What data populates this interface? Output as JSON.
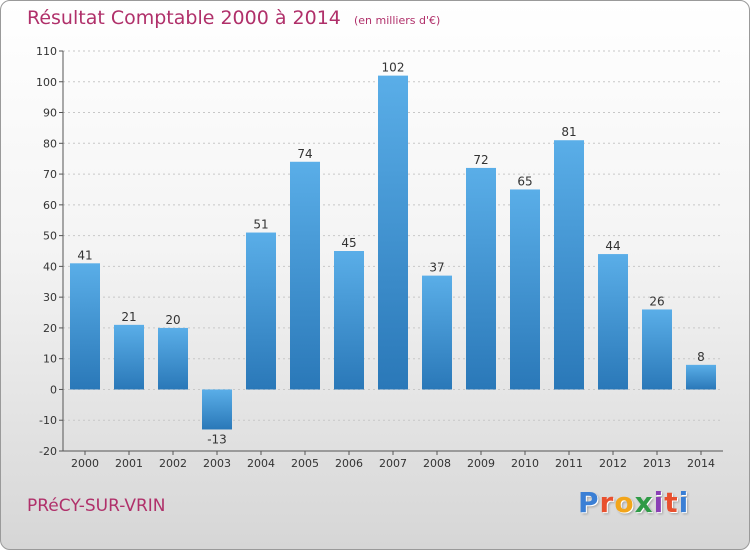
{
  "title": "Résultat Comptable 2000 à 2014",
  "subtitle": "(en milliers d'€)",
  "commune": "PRéCY-SUR-VRIN",
  "logo": {
    "letters": [
      "P",
      "r",
      "o",
      "x",
      "i",
      "t",
      "i"
    ],
    "colors": [
      "#3a7fd5",
      "#e8502e",
      "#f2a51a",
      "#2e9b46",
      "#8a3fb5",
      "#e8502e",
      "#3a7fd5"
    ]
  },
  "colors": {
    "bar_top": "#5aaee8",
    "bar_bottom": "#2a78b8",
    "title": "#b0306a"
  },
  "chart_data": {
    "type": "bar",
    "title": "Résultat Comptable 2000 à 2014",
    "subtitle": "(en milliers d'€)",
    "categories": [
      "2000",
      "2001",
      "2002",
      "2003",
      "2004",
      "2005",
      "2006",
      "2007",
      "2008",
      "2009",
      "2010",
      "2011",
      "2012",
      "2013",
      "2014"
    ],
    "values": [
      41,
      21,
      20,
      -13,
      51,
      74,
      45,
      102,
      37,
      72,
      65,
      81,
      44,
      26,
      8
    ],
    "value_labels": [
      "41",
      "21",
      "20",
      "-13",
      "51",
      "74",
      "45",
      "102",
      "37",
      "72",
      "65",
      "81",
      "44",
      "26",
      "8"
    ],
    "ylim": [
      -20,
      110
    ],
    "yticks": [
      -20,
      -10,
      0,
      10,
      20,
      30,
      40,
      50,
      60,
      70,
      80,
      90,
      100,
      110
    ],
    "ytick_labels": [
      "-20",
      "-10",
      "0",
      "10",
      "20",
      "30",
      "40",
      "50",
      "60",
      "70",
      "80",
      "90",
      "100",
      "110"
    ],
    "grid": true,
    "xlabel": "",
    "ylabel": ""
  }
}
